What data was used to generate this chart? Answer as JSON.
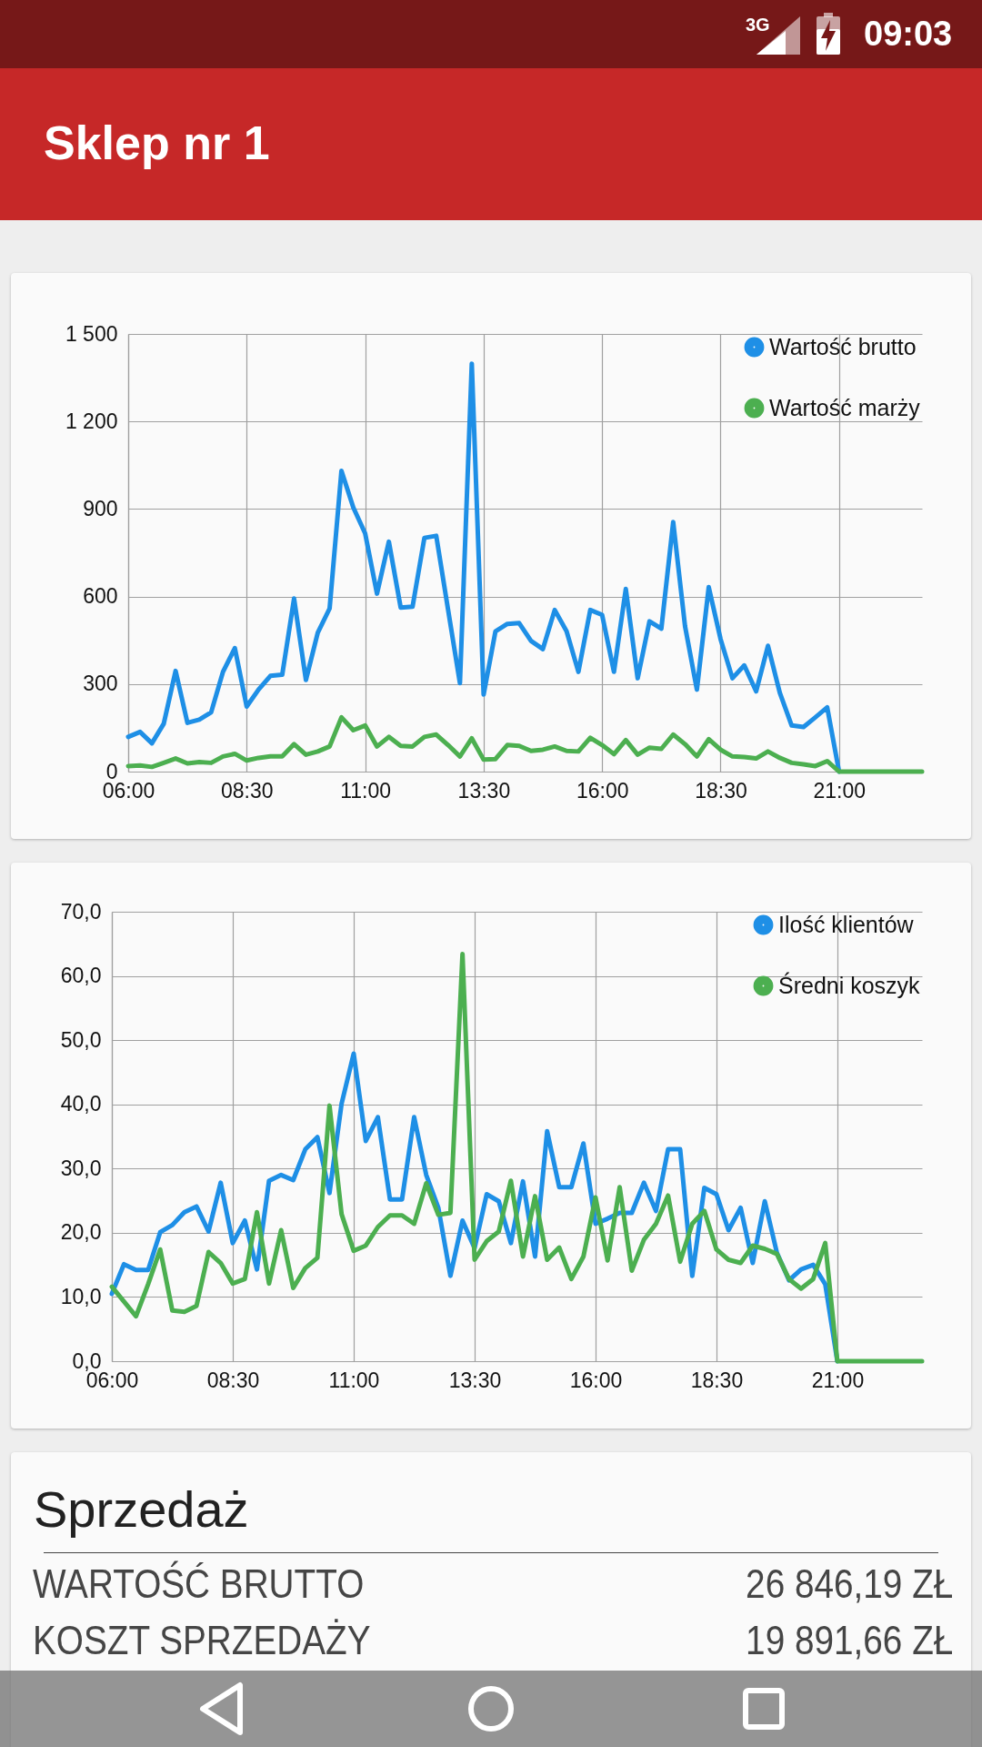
{
  "chart_data": [
    {
      "type": "other",
      "title": "Sklep nr 1",
      "annotations": [
        "3G",
        "09:03"
      ]
    },
    {
      "type": "line",
      "x": [
        6,
        6.25,
        6.5,
        6.75,
        7,
        7.25,
        7.5,
        7.75,
        8,
        8.25,
        8.5,
        8.75,
        9,
        9.25,
        9.5,
        9.75,
        10,
        10.25,
        10.5,
        10.75,
        11,
        11.25,
        11.5,
        11.75,
        12,
        12.25,
        12.5,
        12.75,
        13,
        13.25,
        13.5,
        13.75,
        14,
        14.25,
        14.5,
        14.75,
        15,
        15.25,
        15.5,
        15.75,
        16,
        16.25,
        16.5,
        16.75,
        17,
        17.25,
        17.5,
        17.75,
        18,
        18.25,
        18.5,
        18.75,
        19,
        19.25,
        19.5,
        19.75,
        20,
        20.25,
        20.5,
        20.75,
        21,
        21.25,
        21.5,
        21.75,
        22,
        22.25,
        22.5,
        22.75
      ],
      "series": [
        {
          "name": "Wartość brutto",
          "color": "#1e8fe6",
          "values": [
            119,
            136,
            97,
            164,
            345,
            167,
            178,
            203,
            342,
            423,
            223,
            281,
            328,
            332,
            593,
            314,
            476,
            559,
            1031,
            905,
            816,
            610,
            788,
            562,
            565,
            801,
            808,
            555,
            303,
            1398,
            264,
            481,
            506,
            509,
            448,
            420,
            554,
            481,
            342,
            554,
            537,
            342,
            626,
            320,
            515,
            490,
            855,
            498,
            281,
            632,
            454,
            320,
            364,
            275,
            431,
            270,
            158,
            153,
            186,
            220,
            0,
            null,
            null,
            null,
            null,
            null,
            null,
            null
          ]
        },
        {
          "name": "Wartość marży",
          "color": "#4caf50",
          "values": [
            19,
            21,
            16,
            30,
            45,
            28,
            33,
            30,
            52,
            61,
            38,
            47,
            52,
            52,
            94,
            58,
            69,
            86,
            186,
            142,
            158,
            86,
            119,
            88,
            86,
            119,
            127,
            91,
            52,
            114,
            41,
            43,
            91,
            88,
            71,
            75,
            86,
            71,
            69,
            116,
            91,
            60,
            108,
            58,
            82,
            78,
            127,
            94,
            52,
            111,
            75,
            52,
            50,
            45,
            69,
            47,
            30,
            25,
            19,
            36,
            0,
            0,
            0,
            0,
            0,
            0,
            0,
            0
          ]
        }
      ],
      "xlim": [
        6,
        22.75
      ],
      "xticks": [
        {
          "value": 6,
          "label": "06:00"
        },
        {
          "value": 8.5,
          "label": "08:30"
        },
        {
          "value": 11,
          "label": "11:00"
        },
        {
          "value": 13.5,
          "label": "13:30"
        },
        {
          "value": 16,
          "label": "16:00"
        },
        {
          "value": 18.5,
          "label": "18:30"
        },
        {
          "value": 21,
          "label": "21:00"
        }
      ],
      "ylim": [
        0,
        1500
      ],
      "yticks": [
        0,
        300,
        600,
        900,
        {
          "value": 1200,
          "label": "1 200"
        },
        {
          "value": 1500,
          "label": "1 500"
        }
      ],
      "grid": true,
      "legend": "top right",
      "line_style": "solid",
      "marker": "none"
    },
    {
      "type": "line",
      "x": [
        6,
        6.25,
        6.5,
        6.75,
        7,
        7.25,
        7.5,
        7.75,
        8,
        8.25,
        8.5,
        8.75,
        9,
        9.25,
        9.5,
        9.75,
        10,
        10.25,
        10.5,
        10.75,
        11,
        11.25,
        11.5,
        11.75,
        12,
        12.25,
        12.5,
        12.75,
        13,
        13.25,
        13.5,
        13.75,
        14,
        14.25,
        14.5,
        14.75,
        15,
        15.25,
        15.5,
        15.75,
        16,
        16.25,
        16.5,
        16.75,
        17,
        17.25,
        17.5,
        17.75,
        18,
        18.25,
        18.5,
        18.75,
        19,
        19.25,
        19.5,
        19.75,
        20,
        20.25,
        20.5,
        20.75,
        21,
        21.25,
        21.5,
        21.75,
        22,
        22.25,
        22.5,
        22.75
      ],
      "series": [
        {
          "name": "Ilość klientów",
          "color": "#1e8fe6",
          "values": [
            10.5,
            15.1,
            14.2,
            14.2,
            20.1,
            21.2,
            23.2,
            24.1,
            20.2,
            27.8,
            18.4,
            21.9,
            14.3,
            28.1,
            29.0,
            28.2,
            33.0,
            34.9,
            26.2,
            40.1,
            47.9,
            34.3,
            38.0,
            25.2,
            25.2,
            38.0,
            29.0,
            23.9,
            13.3,
            21.9,
            17.6,
            26.0,
            24.9,
            18.4,
            28.0,
            16.3,
            35.8,
            27.1,
            27.1,
            33.9,
            21.4,
            22.2,
            23.1,
            23.1,
            27.8,
            23.4,
            33.0,
            33.0,
            13.3,
            27.0,
            26.0,
            20.4,
            23.9,
            15.3,
            24.9,
            16.9,
            12.6,
            14.3,
            15.0,
            12.0,
            0,
            null,
            null,
            null,
            null,
            null,
            null,
            null
          ]
        },
        {
          "name": "Średni koszyk",
          "color": "#4caf50",
          "values": [
            11.6,
            9.3,
            7.0,
            12.0,
            17.4,
            7.9,
            7.7,
            8.6,
            17.0,
            15.3,
            12.1,
            12.8,
            23.2,
            12.1,
            20.4,
            11.4,
            14.5,
            16.1,
            39.8,
            22.9,
            17.2,
            18.0,
            20.9,
            22.7,
            22.7,
            21.4,
            27.7,
            22.8,
            23.1,
            63.4,
            15.8,
            18.7,
            20.2,
            28.1,
            16.3,
            25.7,
            15.8,
            17.7,
            12.8,
            16.3,
            25.5,
            15.7,
            27.1,
            14.1,
            18.9,
            21.4,
            25.8,
            15.5,
            21.4,
            23.4,
            17.4,
            15.8,
            15.3,
            18.0,
            17.5,
            16.7,
            12.8,
            11.3,
            12.8,
            18.4,
            0,
            0,
            0,
            0,
            0,
            0,
            0,
            0
          ]
        }
      ],
      "xlim": [
        6,
        22.75
      ],
      "xticks": [
        {
          "value": 6,
          "label": "06:00"
        },
        {
          "value": 8.5,
          "label": "08:30"
        },
        {
          "value": 11,
          "label": "11:00"
        },
        {
          "value": 13.5,
          "label": "13:30"
        },
        {
          "value": 16,
          "label": "16:00"
        },
        {
          "value": 18.5,
          "label": "18:30"
        },
        {
          "value": 21,
          "label": "21:00"
        }
      ],
      "ylim": [
        0,
        70
      ],
      "yticks": [
        {
          "value": 0,
          "label": "0,0"
        },
        {
          "value": 10,
          "label": "10,0"
        },
        {
          "value": 20,
          "label": "20,0"
        },
        {
          "value": 30,
          "label": "30,0"
        },
        {
          "value": 40,
          "label": "40,0"
        },
        {
          "value": 50,
          "label": "50,0"
        },
        {
          "value": 60,
          "label": "60,0"
        },
        {
          "value": 70,
          "label": "70,0"
        }
      ],
      "grid": true,
      "legend": "top right",
      "line_style": "solid",
      "marker": "none"
    },
    {
      "type": "other",
      "title": "Sprzedaż",
      "annotations": [
        "WARTOŚĆ BRUTTO",
        "26 846,19 ZŁ",
        "KOSZT SPRZEDAŻY",
        "19 891,66 ZŁ"
      ]
    }
  ]
}
